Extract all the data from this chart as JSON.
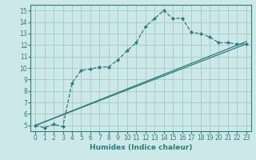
{
  "xlabel": "Humidex (Indice chaleur)",
  "bg_color": "#cce8e8",
  "grid_color": "#aacccc",
  "line_color": "#2e7d7d",
  "xlim": [
    -0.5,
    23.5
  ],
  "ylim": [
    4.5,
    15.5
  ],
  "xticks": [
    0,
    1,
    2,
    3,
    4,
    5,
    6,
    7,
    8,
    9,
    10,
    11,
    12,
    13,
    14,
    15,
    16,
    17,
    18,
    19,
    20,
    21,
    22,
    23
  ],
  "yticks": [
    5,
    6,
    7,
    8,
    9,
    10,
    11,
    12,
    13,
    14,
    15
  ],
  "line1_x": [
    0,
    1,
    2,
    3,
    4,
    5,
    6,
    7,
    8,
    9,
    10,
    11,
    12,
    13,
    14,
    15,
    16,
    17,
    18,
    19,
    20,
    21,
    22,
    23
  ],
  "line1_y": [
    5.0,
    4.8,
    5.1,
    4.9,
    8.7,
    9.8,
    9.9,
    10.1,
    10.1,
    10.7,
    11.5,
    12.2,
    13.6,
    14.3,
    15.0,
    14.3,
    14.35,
    13.1,
    13.0,
    12.7,
    12.2,
    12.2,
    12.1,
    12.1
  ],
  "line2_x": [
    0,
    23
  ],
  "line2_y": [
    5.0,
    12.3
  ],
  "line3_x": [
    0,
    23
  ],
  "line3_y": [
    5.0,
    12.1
  ],
  "tick_fontsize": 5.5,
  "xlabel_fontsize": 6.5
}
